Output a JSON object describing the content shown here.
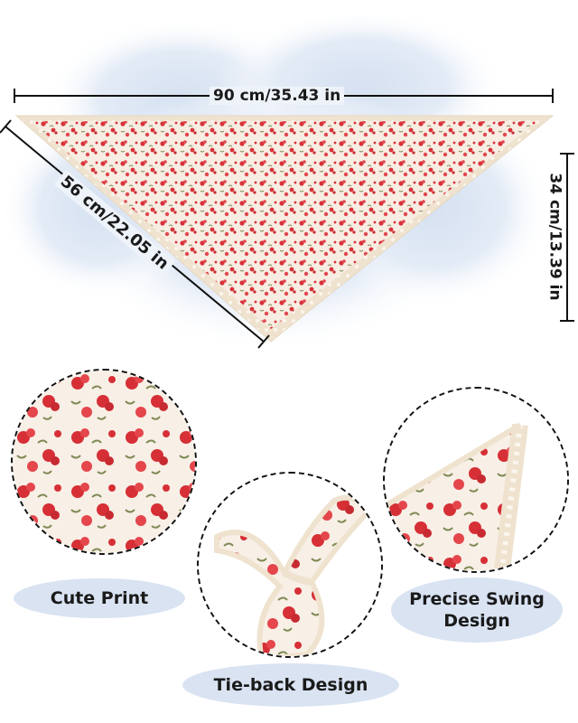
{
  "dimensions": {
    "width_label": "90 cm/35.43 in",
    "height_label": "34 cm/13.39 in",
    "side_label": "56 cm/22.05 in"
  },
  "features": [
    {
      "id": "cute-print",
      "label": "Cute Print"
    },
    {
      "id": "tie-back",
      "label": "Tie-back Design"
    },
    {
      "id": "precise-swing",
      "label_line1": "Precise Swing",
      "label_line2": "Design"
    }
  ],
  "colors": {
    "fabric": "#f6ece2",
    "flower": "#d8323a",
    "leaf": "#7f8a55",
    "lace": "#efe3cf",
    "cloud": "#d7e2f2"
  }
}
